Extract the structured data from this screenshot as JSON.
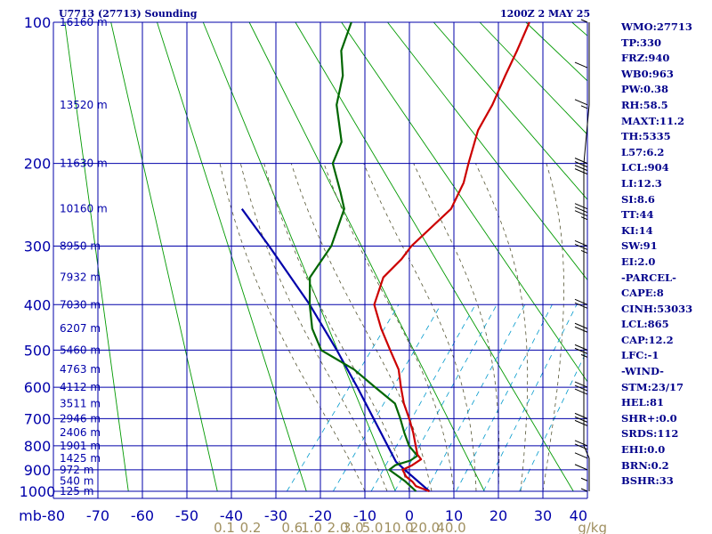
{
  "title": {
    "station": "U7713 (27713) Sounding",
    "time": "1200Z  2 MAY 25"
  },
  "colors": {
    "grid": "#0000aa",
    "isotherm_text": "#0000aa",
    "dry_adiabat": "#009900",
    "moist_adiabat": "#555533",
    "mixing_ratio": "#0099cc",
    "temperature": "#cc0000",
    "dewpoint": "#006600",
    "parcel": "#0000aa",
    "indices_text": "#00008b",
    "mixing_label_text": "#a09060",
    "wind_barb": "#000000"
  },
  "chart_data": {
    "type": "skew-t",
    "y_scale": "log",
    "ylim": [
      100,
      1000
    ],
    "xlim": [
      -80,
      0
    ],
    "pressure_ticks": [
      100,
      200,
      300,
      400,
      500,
      600,
      700,
      800,
      900,
      1000
    ],
    "temperature_ticks": [
      -80,
      -70,
      -60,
      -50,
      -40,
      -30,
      -20,
      -10,
      0,
      10,
      20,
      30,
      40
    ],
    "y_unit_label": "mb",
    "height_labels": [
      {
        "p": 100,
        "h": "16160 m"
      },
      {
        "p": 150,
        "h": "13520 m"
      },
      {
        "p": 200,
        "h": "11630 m"
      },
      {
        "p": 250,
        "h": "10160 m"
      },
      {
        "p": 300,
        "h": "8950 m"
      },
      {
        "p": 350,
        "h": "7932 m"
      },
      {
        "p": 400,
        "h": "7030 m"
      },
      {
        "p": 450,
        "h": "6207 m"
      },
      {
        "p": 500,
        "h": "5460 m"
      },
      {
        "p": 550,
        "h": "4763 m"
      },
      {
        "p": 600,
        "h": "4112 m"
      },
      {
        "p": 650,
        "h": "3511 m"
      },
      {
        "p": 700,
        "h": "2946 m"
      },
      {
        "p": 750,
        "h": "2406 m"
      },
      {
        "p": 800,
        "h": "1901 m"
      },
      {
        "p": 850,
        "h": "1425 m"
      },
      {
        "p": 900,
        "h": "972 m"
      },
      {
        "p": 950,
        "h": "540 m"
      },
      {
        "p": 1000,
        "h": "125 m"
      }
    ],
    "mixing_ratio_labels": [
      "0.1",
      "0.2",
      "0.6",
      "1.0",
      "2.0",
      "3.0",
      "5.0",
      "10.0",
      "20.0",
      "40.0"
    ],
    "mixing_ratio_values": [
      0.1,
      0.2,
      0.6,
      1.0,
      2.0,
      3.0,
      5.0,
      10.0,
      20.0,
      40.0
    ],
    "mixing_ratio_unit": "g/kg",
    "mixing_ratio_lines": [
      0.4,
      1,
      2,
      3,
      5,
      8,
      12,
      20
    ],
    "dry_adiabats_theta_k": [
      210,
      230,
      250,
      270,
      290,
      310,
      330,
      350,
      370,
      390,
      410,
      430,
      450,
      470,
      490,
      510,
      530,
      550,
      570,
      590,
      610,
      630,
      650,
      670,
      690,
      710,
      730,
      750,
      770
    ],
    "moist_adiabats_theta_w_c": [
      -10,
      -5,
      0,
      5,
      10,
      15,
      20,
      25,
      30
    ],
    "temperature_profile": [
      {
        "p": 1000,
        "t": 4.5
      },
      {
        "p": 975,
        "t": 0.5
      },
      {
        "p": 955,
        "t": -1.0
      },
      {
        "p": 930,
        "t": -3.5
      },
      {
        "p": 900,
        "t": -5.5
      },
      {
        "p": 880,
        "t": -4.2
      },
      {
        "p": 855,
        "t": -3.3
      },
      {
        "p": 835,
        "t": -5.0
      },
      {
        "p": 800,
        "t": -7.0
      },
      {
        "p": 750,
        "t": -10.0
      },
      {
        "p": 700,
        "t": -13.5
      },
      {
        "p": 650,
        "t": -17.5
      },
      {
        "p": 600,
        "t": -21.2
      },
      {
        "p": 550,
        "t": -25.0
      },
      {
        "p": 500,
        "t": -30.5
      },
      {
        "p": 450,
        "t": -36.5
      },
      {
        "p": 400,
        "t": -42.5
      },
      {
        "p": 350,
        "t": -45.5
      },
      {
        "p": 320,
        "t": -44.8
      },
      {
        "p": 300,
        "t": -45.0
      },
      {
        "p": 250,
        "t": -43.0
      },
      {
        "p": 220,
        "t": -45.0
      },
      {
        "p": 200,
        "t": -47.5
      },
      {
        "p": 170,
        "t": -51.5
      },
      {
        "p": 150,
        "t": -53.0
      },
      {
        "p": 130,
        "t": -55.5
      },
      {
        "p": 115,
        "t": -57.5
      },
      {
        "p": 100,
        "t": -60.0
      }
    ],
    "dewpoint_profile": [
      {
        "p": 1000,
        "t": 1.5
      },
      {
        "p": 950,
        "t": -3.0
      },
      {
        "p": 900,
        "t": -8.5
      },
      {
        "p": 880,
        "t": -8.0
      },
      {
        "p": 860,
        "t": -5.5
      },
      {
        "p": 840,
        "t": -4.8
      },
      {
        "p": 800,
        "t": -8.5
      },
      {
        "p": 750,
        "t": -12.0
      },
      {
        "p": 700,
        "t": -15.5
      },
      {
        "p": 650,
        "t": -19.5
      },
      {
        "p": 600,
        "t": -27.0
      },
      {
        "p": 550,
        "t": -35.0
      },
      {
        "p": 500,
        "t": -46.0
      },
      {
        "p": 450,
        "t": -52.0
      },
      {
        "p": 400,
        "t": -57.0
      },
      {
        "p": 350,
        "t": -62.0
      },
      {
        "p": 300,
        "t": -63.0
      },
      {
        "p": 250,
        "t": -67.0
      },
      {
        "p": 230,
        "t": -71.0
      },
      {
        "p": 200,
        "t": -78.0
      },
      {
        "p": 180,
        "t": -80.0
      },
      {
        "p": 150,
        "t": -88.0
      },
      {
        "p": 130,
        "t": -92.0
      },
      {
        "p": 115,
        "t": -97.0
      },
      {
        "p": 100,
        "t": -100.0
      }
    ],
    "parcel_profile": [
      {
        "p": 1000,
        "t": 4.5
      },
      {
        "p": 900,
        "t": -5.0
      },
      {
        "p": 865,
        "t": -8.5
      },
      {
        "p": 800,
        "t": -13.3
      },
      {
        "p": 700,
        "t": -21.5
      },
      {
        "p": 600,
        "t": -31.0
      },
      {
        "p": 500,
        "t": -42.5
      },
      {
        "p": 400,
        "t": -57.0
      },
      {
        "p": 300,
        "t": -77.0
      },
      {
        "p": 250,
        "t": -90.0
      }
    ],
    "wind_barbs": [
      {
        "p": 1000,
        "dir": 250,
        "kt": 5
      },
      {
        "p": 950,
        "dir": 255,
        "kt": 5
      },
      {
        "p": 900,
        "dir": 260,
        "kt": 10
      },
      {
        "p": 850,
        "dir": 265,
        "kt": 10
      },
      {
        "p": 800,
        "dir": 270,
        "kt": 20
      },
      {
        "p": 700,
        "dir": 275,
        "kt": 30
      },
      {
        "p": 600,
        "dir": 280,
        "kt": 30
      },
      {
        "p": 500,
        "dir": 280,
        "kt": 25
      },
      {
        "p": 450,
        "dir": 280,
        "kt": 20
      },
      {
        "p": 400,
        "dir": 285,
        "kt": 20
      },
      {
        "p": 300,
        "dir": 290,
        "kt": 25
      },
      {
        "p": 250,
        "dir": 290,
        "kt": 35
      },
      {
        "p": 200,
        "dir": 290,
        "kt": 40
      },
      {
        "p": 150,
        "dir": 300,
        "kt": 15
      },
      {
        "p": 125,
        "dir": 320,
        "kt": 10
      },
      {
        "p": 100,
        "dir": 320,
        "kt": 5
      }
    ]
  },
  "indices": [
    "WMO:27713",
    "TP:330",
    "FRZ:940",
    "WB0:963",
    "PW:0.38",
    "RH:58.5",
    "MAXT:11.2",
    "TH:5335",
    "L57:6.2",
    "LCL:904",
    "LI:12.3",
    "SI:8.6",
    "TT:44",
    "KI:14",
    "SW:91",
    "EI:2.0",
    "-PARCEL-",
    "CAPE:8",
    "CINH:53033",
    "LCL:865",
    "CAP:12.2",
    "LFC:-1",
    "-WIND-",
    "STM:23/17",
    "HEL:81",
    "SHR+:0.0",
    "SRDS:112",
    "EHI:0.0",
    "BRN:0.2",
    "BSHR:33"
  ]
}
